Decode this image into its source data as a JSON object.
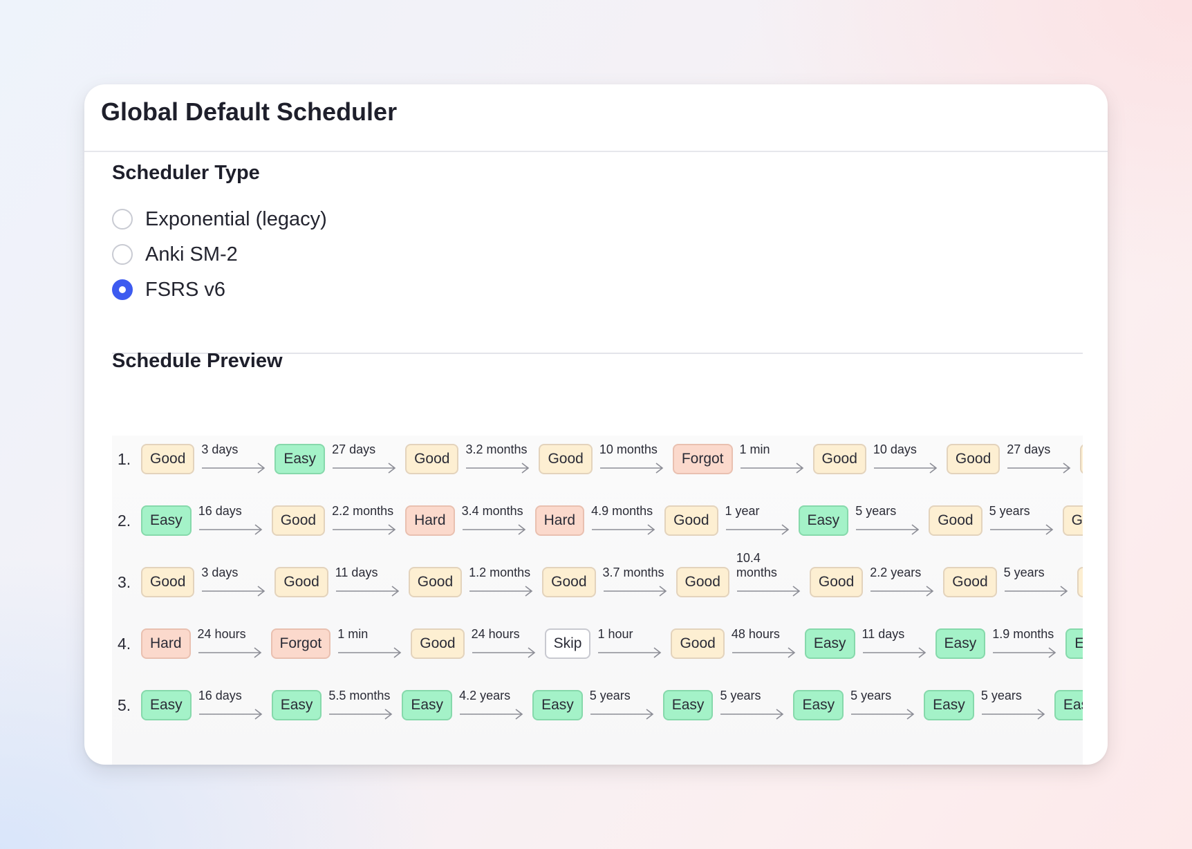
{
  "card": {
    "title": "Global Default Scheduler"
  },
  "scheduler_type": {
    "title": "Scheduler Type",
    "options": [
      {
        "label": "Exponential (legacy)",
        "selected": false
      },
      {
        "label": "Anki SM-2",
        "selected": false
      },
      {
        "label": "FSRS v6",
        "selected": true
      }
    ]
  },
  "schedule_preview": {
    "title": "Schedule Preview",
    "rows": [
      {
        "number": "1.",
        "steps": [
          {
            "rating": "Good",
            "interval": "3 days"
          },
          {
            "rating": "Easy",
            "interval": "27 days"
          },
          {
            "rating": "Good",
            "interval": "3.2 months"
          },
          {
            "rating": "Good",
            "interval": "10 months"
          },
          {
            "rating": "Forgot",
            "interval": "1 min"
          },
          {
            "rating": "Good",
            "interval": "10 days"
          },
          {
            "rating": "Good",
            "interval": "27 days"
          },
          {
            "rating": "Good",
            "interval": ""
          }
        ]
      },
      {
        "number": "2.",
        "steps": [
          {
            "rating": "Easy",
            "interval": "16 days"
          },
          {
            "rating": "Good",
            "interval": "2.2 months"
          },
          {
            "rating": "Hard",
            "interval": "3.4 months"
          },
          {
            "rating": "Hard",
            "interval": "4.9 months"
          },
          {
            "rating": "Good",
            "interval": "1 year"
          },
          {
            "rating": "Easy",
            "interval": "5 years"
          },
          {
            "rating": "Good",
            "interval": "5 years"
          },
          {
            "rating": "Good",
            "interval": ""
          }
        ]
      },
      {
        "number": "3.",
        "steps": [
          {
            "rating": "Good",
            "interval": "3 days"
          },
          {
            "rating": "Good",
            "interval": "11 days"
          },
          {
            "rating": "Good",
            "interval": "1.2 months"
          },
          {
            "rating": "Good",
            "interval": "3.7 months"
          },
          {
            "rating": "Good",
            "interval": "10.4 months"
          },
          {
            "rating": "Good",
            "interval": "2.2 years"
          },
          {
            "rating": "Good",
            "interval": "5 years"
          },
          {
            "rating": "Good",
            "interval": ""
          }
        ]
      },
      {
        "number": "4.",
        "steps": [
          {
            "rating": "Hard",
            "interval": "24 hours"
          },
          {
            "rating": "Forgot",
            "interval": "1 min"
          },
          {
            "rating": "Good",
            "interval": "24 hours"
          },
          {
            "rating": "Skip",
            "interval": "1 hour"
          },
          {
            "rating": "Good",
            "interval": "48 hours"
          },
          {
            "rating": "Easy",
            "interval": "11 days"
          },
          {
            "rating": "Easy",
            "interval": "1.9 months"
          },
          {
            "rating": "Easy",
            "interval": ""
          }
        ]
      },
      {
        "number": "5.",
        "steps": [
          {
            "rating": "Easy",
            "interval": "16 days"
          },
          {
            "rating": "Easy",
            "interval": "5.5 months"
          },
          {
            "rating": "Easy",
            "interval": "4.2 years"
          },
          {
            "rating": "Easy",
            "interval": "5 years"
          },
          {
            "rating": "Easy",
            "interval": "5 years"
          },
          {
            "rating": "Easy",
            "interval": "5 years"
          },
          {
            "rating": "Easy",
            "interval": "5 years"
          },
          {
            "rating": "Easy",
            "interval": ""
          }
        ]
      }
    ]
  },
  "colors": {
    "accent": "#3d5bf0",
    "good": "#fdefd2",
    "easy": "#a4f2c8",
    "hard": "#fbd9cc",
    "forgot": "#fbd9cc",
    "skip": "#ffffff"
  }
}
